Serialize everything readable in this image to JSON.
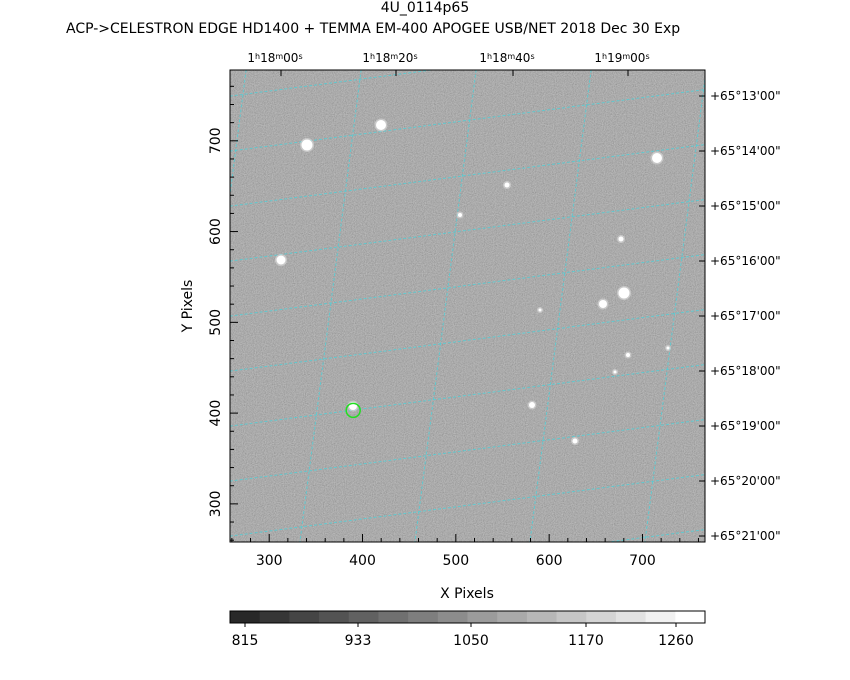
{
  "title": "4U_0114p65",
  "subtitle": "ACP->CELESTRON EDGE HD1400 + TEMMA EM-400 APOGEE USB/NET   2018 Dec 30    Exp",
  "chart_data": {
    "type": "image",
    "xlabel": "X Pixels",
    "ylabel": "Y Pixels",
    "xlim": [
      258,
      767
    ],
    "ylim": [
      258,
      778
    ],
    "x_ticks": [
      300,
      400,
      500,
      600,
      700
    ],
    "y_ticks": [
      300,
      400,
      500,
      600,
      700
    ],
    "ra_ticks": [
      {
        "h": "1",
        "m": "18",
        "s": "00"
      },
      {
        "h": "1",
        "m": "18",
        "s": "20"
      },
      {
        "h": "1",
        "m": "18",
        "s": "40"
      },
      {
        "h": "1",
        "m": "19",
        "s": "00"
      }
    ],
    "dec_ticks": [
      "+65°13'00\"",
      "+65°14'00\"",
      "+65°15'00\"",
      "+65°16'00\"",
      "+65°17'00\"",
      "+65°18'00\"",
      "+65°19'00\"",
      "+65°20'00\"",
      "+65°21'00\""
    ],
    "colorbar": {
      "tick_labels": [
        "815",
        "933",
        "1050",
        "1170",
        "1260"
      ],
      "levels": 16
    },
    "grid_color": "#4fd0d8",
    "marker_color": "#22dd22",
    "target": {
      "x": 390,
      "y": 403
    }
  }
}
